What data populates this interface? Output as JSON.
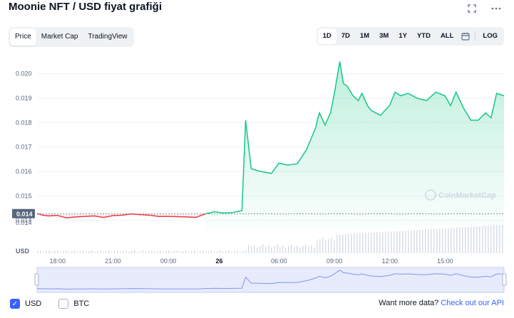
{
  "title": "Moonie NFT / USD fiyat grafiği",
  "icons": {
    "fullscreen": "fullscreen-icon",
    "more": "more-horizontal-icon",
    "calendar": "calendar-icon",
    "watermark": "coinmarketcap-logo-icon"
  },
  "tabs": [
    {
      "label": "Price",
      "active": true
    },
    {
      "label": "Market Cap",
      "active": false
    },
    {
      "label": "TradingView",
      "active": false
    }
  ],
  "ranges": [
    {
      "label": "1D",
      "active": true
    },
    {
      "label": "7D",
      "active": false
    },
    {
      "label": "1M",
      "active": false
    },
    {
      "label": "3M",
      "active": false
    },
    {
      "label": "1Y",
      "active": false
    },
    {
      "label": "YTD",
      "active": false
    },
    {
      "label": "ALL",
      "active": false
    }
  ],
  "log_label": "LOG",
  "watermark": "CoinMarketCap",
  "currency_label": "USD",
  "current_price_label": "0.014",
  "legend": [
    {
      "label": "USD",
      "checked": true
    },
    {
      "label": "BTC",
      "checked": false
    }
  ],
  "api": {
    "text": "Want more data?",
    "link": "Check out our API"
  },
  "colors": {
    "up": "#16c784",
    "down": "#ea3943",
    "accent": "#3861fb",
    "navigator": "#c5cdf4"
  },
  "chart_data": {
    "type": "line",
    "title": "Moonie NFT / USD fiyat grafiği",
    "y_ticks": [
      "0.020",
      "0.019",
      "0.018",
      "0.017",
      "0.016",
      "0.015",
      "0.014"
    ],
    "y_tick_values": [
      0.02,
      0.019,
      0.018,
      0.017,
      0.016,
      0.015,
      0.014
    ],
    "ylim": [
      0.0137,
      0.0204
    ],
    "x_ticks": [
      "18:00",
      "21:00",
      "00:00",
      "26",
      "06:00",
      "09:00",
      "12:00",
      "15:00"
    ],
    "x_tick_hours": [
      18,
      21,
      24,
      27,
      30,
      33,
      36,
      39
    ],
    "xlim": [
      16.9,
      42.2
    ],
    "baseline": 0.01426,
    "series": [
      {
        "x": [
          16.9,
          17.2,
          17.5,
          18.0,
          18.5,
          19.0,
          19.5,
          20.0,
          20.5,
          21.0,
          21.5,
          22.0,
          22.5,
          23.0,
          23.5,
          24.0,
          24.5,
          25.0,
          25.5,
          26.0,
          26.5,
          27.0,
          27.5,
          28.0,
          28.2,
          28.5,
          28.9,
          29.3,
          29.6,
          30.0,
          30.5,
          31.0,
          31.5,
          32.0,
          32.1,
          32.2,
          32.5,
          32.8,
          33.0,
          33.3,
          33.5,
          33.7,
          34.0,
          34.3,
          34.5,
          34.8,
          35.0,
          35.5,
          36.0,
          36.3,
          36.6,
          37.0,
          37.5,
          38.0,
          38.5,
          39.0,
          39.3,
          39.6,
          40.0,
          40.4,
          40.8,
          41.2,
          41.5,
          41.8,
          42.2
        ],
        "y": [
          0.01428,
          0.01421,
          0.01418,
          0.0142,
          0.0141,
          0.01414,
          0.01416,
          0.01418,
          0.01412,
          0.01419,
          0.01421,
          0.01426,
          0.01423,
          0.01421,
          0.01416,
          0.01416,
          0.01415,
          0.01414,
          0.01412,
          0.01426,
          0.01435,
          0.0143,
          0.01432,
          0.0144,
          0.0181,
          0.01612,
          0.01602,
          0.01596,
          0.01592,
          0.01634,
          0.01626,
          0.01632,
          0.0169,
          0.0178,
          0.01815,
          0.0184,
          0.0179,
          0.0184,
          0.01916,
          0.0205,
          0.0196,
          0.0195,
          0.01912,
          0.0189,
          0.0192,
          0.0187,
          0.0185,
          0.0183,
          0.0187,
          0.01925,
          0.0191,
          0.0192,
          0.019,
          0.0189,
          0.01925,
          0.0191,
          0.0187,
          0.01925,
          0.0186,
          0.0181,
          0.0181,
          0.0184,
          0.0182,
          0.0192,
          0.0191
        ]
      }
    ]
  }
}
